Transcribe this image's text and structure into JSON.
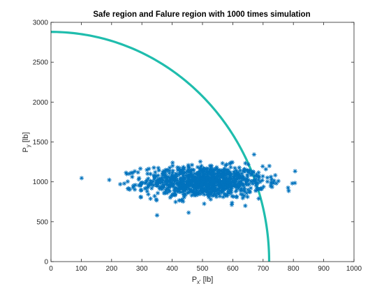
{
  "chart_data": {
    "type": "scatter",
    "title": "Safe region and Falure region with 1000 times simulation",
    "xlabel": {
      "main": "P",
      "sub": "x'",
      "unit": " [lb]"
    },
    "ylabel": {
      "main": "P",
      "sub": "y",
      "unit": " [lb]"
    },
    "xlim": [
      0,
      1000
    ],
    "ylim": [
      0,
      3000
    ],
    "xticks": [
      "0",
      "100",
      "200",
      "300",
      "400",
      "500",
      "600",
      "700",
      "800",
      "900",
      "1000"
    ],
    "yticks": [
      "0",
      "500",
      "1000",
      "1500",
      "2000",
      "2500",
      "3000"
    ],
    "grid": false,
    "boundary": {
      "shape": "quarter-ellipse",
      "x_intercept": 720,
      "y_intercept": 2880,
      "color": "#1FBDAD"
    },
    "series": [
      {
        "marker": "asterisk",
        "color": "#0072BD",
        "count": 1000,
        "x_mean": 505,
        "x_std": 100,
        "y_mean": 1000,
        "y_std": 100
      }
    ]
  }
}
